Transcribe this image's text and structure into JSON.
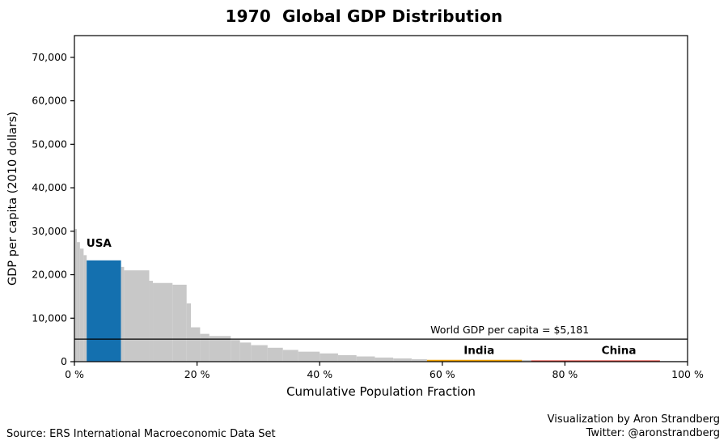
{
  "title": {
    "year": "1970",
    "text": "Global GDP Distribution"
  },
  "chart_data": {
    "type": "area",
    "title": "1970 Global GDP Distribution",
    "xlabel": "Cumulative Population Fraction",
    "ylabel": "GDP per capita (2010 dollars)",
    "xlim": [
      0,
      1
    ],
    "ylim": [
      0,
      75000
    ],
    "x_ticks": [
      0,
      20,
      40,
      60,
      80,
      100
    ],
    "x_tick_suffix": " %",
    "y_ticks": [
      0,
      10000,
      20000,
      30000,
      40000,
      50000,
      60000,
      70000
    ],
    "grid": false,
    "reference_line": {
      "value": 5181,
      "label": "World GDP per capita = $5,181",
      "label_x": 0.71,
      "color": "#000000"
    },
    "colors": {
      "other": "#c8c8c8",
      "usa": "#1470af",
      "india": "#f0a202",
      "china": "#e0463c"
    },
    "segments": [
      {
        "start": 0.0,
        "end": 0.004,
        "value": 30500,
        "group": "other"
      },
      {
        "start": 0.004,
        "end": 0.009,
        "value": 27500,
        "group": "other"
      },
      {
        "start": 0.009,
        "end": 0.015,
        "value": 26000,
        "group": "other"
      },
      {
        "start": 0.015,
        "end": 0.02,
        "value": 24500,
        "group": "other"
      },
      {
        "start": 0.02,
        "end": 0.076,
        "value": 23300,
        "group": "usa",
        "label": "USA"
      },
      {
        "start": 0.076,
        "end": 0.081,
        "value": 21800,
        "group": "other"
      },
      {
        "start": 0.081,
        "end": 0.122,
        "value": 21000,
        "group": "other"
      },
      {
        "start": 0.122,
        "end": 0.128,
        "value": 18600,
        "group": "other"
      },
      {
        "start": 0.128,
        "end": 0.16,
        "value": 18100,
        "group": "other"
      },
      {
        "start": 0.16,
        "end": 0.183,
        "value": 17700,
        "group": "other"
      },
      {
        "start": 0.183,
        "end": 0.19,
        "value": 13400,
        "group": "other"
      },
      {
        "start": 0.19,
        "end": 0.205,
        "value": 7900,
        "group": "other"
      },
      {
        "start": 0.205,
        "end": 0.22,
        "value": 6400,
        "group": "other"
      },
      {
        "start": 0.22,
        "end": 0.255,
        "value": 5900,
        "group": "other"
      },
      {
        "start": 0.255,
        "end": 0.27,
        "value": 5000,
        "group": "other"
      },
      {
        "start": 0.27,
        "end": 0.288,
        "value": 4400,
        "group": "other"
      },
      {
        "start": 0.288,
        "end": 0.315,
        "value": 3800,
        "group": "other"
      },
      {
        "start": 0.315,
        "end": 0.34,
        "value": 3200,
        "group": "other"
      },
      {
        "start": 0.34,
        "end": 0.365,
        "value": 2700,
        "group": "other"
      },
      {
        "start": 0.365,
        "end": 0.4,
        "value": 2300,
        "group": "other"
      },
      {
        "start": 0.4,
        "end": 0.43,
        "value": 1900,
        "group": "other"
      },
      {
        "start": 0.43,
        "end": 0.46,
        "value": 1500,
        "group": "other"
      },
      {
        "start": 0.46,
        "end": 0.49,
        "value": 1200,
        "group": "other"
      },
      {
        "start": 0.49,
        "end": 0.52,
        "value": 950,
        "group": "other"
      },
      {
        "start": 0.52,
        "end": 0.55,
        "value": 750,
        "group": "other"
      },
      {
        "start": 0.55,
        "end": 0.575,
        "value": 550,
        "group": "other"
      },
      {
        "start": 0.575,
        "end": 0.73,
        "value": 420,
        "group": "india",
        "label": "India"
      },
      {
        "start": 0.73,
        "end": 0.745,
        "value": 380,
        "group": "other"
      },
      {
        "start": 0.745,
        "end": 0.955,
        "value": 300,
        "group": "china",
        "label": "China"
      },
      {
        "start": 0.955,
        "end": 1.0,
        "value": 150,
        "group": "other"
      }
    ],
    "annotations": [
      {
        "text": "USA",
        "x": 0.04,
        "y": 26400,
        "group": "usa"
      },
      {
        "text": "India",
        "x": 0.66,
        "y": 1800,
        "group": "india"
      },
      {
        "text": "China",
        "x": 0.888,
        "y": 1800,
        "group": "china"
      }
    ]
  },
  "footer": {
    "source": "Source: ERS International Macroeconomic Data Set",
    "credit_line1": "Visualization by Aron Strandberg",
    "credit_line2": "Twitter: @aronstrandberg"
  }
}
